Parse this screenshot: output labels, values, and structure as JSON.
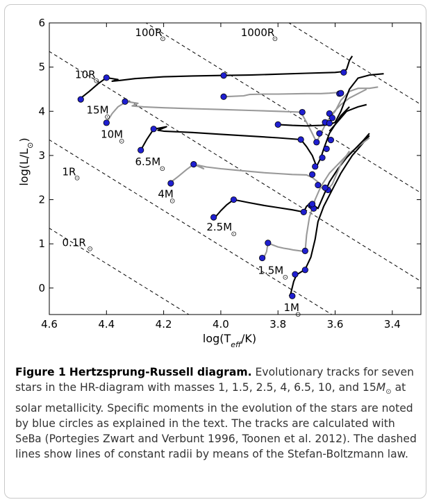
{
  "chart_data": {
    "type": "line",
    "xlabel": "log(T_eff/K)",
    "ylabel": "log(L/L_⊙)",
    "xlim": [
      4.6,
      3.3
    ],
    "ylim": [
      -0.6,
      6.0
    ],
    "x_inverted": true,
    "xticks": [
      "4.6",
      "4.4",
      "4.2",
      "4.0",
      "3.8",
      "3.6",
      "3.4"
    ],
    "yticks": [
      "0",
      "1",
      "2",
      "3",
      "4",
      "5",
      "6"
    ],
    "grid": false,
    "colors": {
      "black_track": "#000000",
      "gray_track": "#999999",
      "marker": "#1f1fd0",
      "radius_line": "#000000"
    },
    "radius_lines": [
      {
        "label": "0.1R",
        "log_r": -1
      },
      {
        "label": "1R",
        "log_r": 0
      },
      {
        "label": "10R",
        "log_r": 1
      },
      {
        "label": "100R",
        "log_r": 2
      },
      {
        "label": "1000R",
        "log_r": 3
      }
    ],
    "series": [
      {
        "name": "1M",
        "color": "black",
        "label_x": 3.78,
        "label_y": -0.52,
        "x": [
          3.76,
          3.755,
          3.745,
          3.735,
          3.72,
          3.705,
          3.685,
          3.67,
          3.66,
          3.64,
          3.62,
          3.6,
          3.58,
          3.56,
          3.54,
          3.52,
          3.5,
          3.49,
          3.48
        ],
        "y": [
          -0.18,
          -0.12,
          0.15,
          0.3,
          0.36,
          0.42,
          0.7,
          1.1,
          1.5,
          1.85,
          2.1,
          2.35,
          2.6,
          2.8,
          3.0,
          3.15,
          3.3,
          3.38,
          3.45
        ],
        "marker_x": [
          3.75,
          3.74,
          3.705
        ],
        "marker_y": [
          -0.18,
          0.31,
          0.41
        ]
      },
      {
        "name": "1.5M",
        "color": "gray",
        "label_x": 3.87,
        "label_y": 0.32,
        "x": [
          3.85,
          3.84,
          3.835,
          3.82,
          3.8,
          3.78,
          3.76,
          3.745,
          3.72,
          3.705,
          3.7,
          3.69,
          3.68,
          3.67,
          3.65,
          3.62,
          3.59,
          3.56,
          3.53,
          3.5,
          3.48
        ],
        "y": [
          0.68,
          0.82,
          1.02,
          0.98,
          0.93,
          0.9,
          0.88,
          0.86,
          0.84,
          0.82,
          1.2,
          1.6,
          1.8,
          2.0,
          2.3,
          2.6,
          2.8,
          3.0,
          3.15,
          3.3,
          3.4
        ],
        "marker_x": [
          3.855,
          3.835,
          3.705
        ],
        "marker_y": [
          0.68,
          1.02,
          0.84
        ]
      },
      {
        "name": "2.5M",
        "color": "black",
        "label_x": 4.05,
        "label_y": 1.3,
        "x": [
          4.02,
          4.0,
          3.98,
          3.955,
          3.9,
          3.85,
          3.8,
          3.75,
          3.71,
          3.7,
          3.69,
          3.68,
          3.67,
          3.66,
          3.64,
          3.62,
          3.59,
          3.56,
          3.53,
          3.5,
          3.48
        ],
        "y": [
          1.6,
          1.75,
          1.88,
          2.0,
          1.93,
          1.87,
          1.82,
          1.77,
          1.72,
          1.85,
          1.9,
          1.88,
          1.85,
          1.8,
          2.1,
          2.4,
          2.7,
          2.95,
          3.15,
          3.35,
          3.5
        ],
        "marker_x": [
          4.025,
          3.955,
          3.71,
          3.685,
          3.68,
          3.675,
          3.68
        ],
        "marker_y": [
          1.6,
          2.0,
          1.72,
          1.87,
          1.85,
          1.8,
          1.9
        ]
      },
      {
        "name": "4M",
        "color": "gray",
        "label_x": 4.22,
        "label_y": 2.05,
        "x": [
          4.18,
          4.15,
          4.12,
          4.095,
          4.06,
          4.08,
          4.05,
          4.0,
          3.95,
          3.9,
          3.85,
          3.8,
          3.75,
          3.7,
          3.68,
          3.66,
          3.65,
          3.63,
          3.61,
          3.58,
          3.55
        ],
        "y": [
          2.37,
          2.52,
          2.68,
          2.8,
          2.7,
          2.78,
          2.74,
          2.7,
          2.67,
          2.64,
          2.61,
          2.59,
          2.57,
          2.56,
          2.5,
          2.4,
          2.28,
          2.2,
          2.35,
          2.8,
          3.1
        ],
        "marker_x": [
          4.175,
          4.095,
          3.68,
          3.66,
          3.625,
          3.635
        ],
        "marker_y": [
          2.37,
          2.8,
          2.57,
          2.33,
          2.22,
          2.27
        ]
      },
      {
        "name": "6.5M",
        "color": "black",
        "label_x": 4.3,
        "label_y": 2.78,
        "x": [
          4.28,
          4.26,
          4.24,
          4.23,
          4.19,
          4.22,
          4.2,
          4.1,
          4.0,
          3.9,
          3.8,
          3.72,
          3.7,
          3.68,
          3.665,
          3.65,
          3.64,
          3.62,
          3.6,
          3.58,
          3.55
        ],
        "y": [
          3.12,
          3.35,
          3.55,
          3.6,
          3.65,
          3.57,
          3.55,
          3.52,
          3.48,
          3.44,
          3.4,
          3.36,
          3.2,
          3.0,
          2.75,
          2.95,
          3.15,
          3.5,
          3.7,
          3.9,
          4.1
        ],
        "marker_x": [
          4.28,
          4.235,
          3.72,
          3.67,
          3.645,
          3.63,
          3.615
        ],
        "marker_y": [
          3.12,
          3.6,
          3.36,
          2.75,
          2.95,
          3.15,
          3.35
        ]
      },
      {
        "name": "10M",
        "color": "gray",
        "label_x": 4.42,
        "label_y": 3.4,
        "x": [
          4.4,
          4.38,
          4.36,
          4.33,
          4.29,
          4.31,
          4.27,
          4.2,
          4.1,
          4.0,
          3.9,
          3.8,
          3.72,
          3.7,
          3.68,
          3.665,
          3.65,
          3.63,
          3.61,
          3.58,
          3.55,
          3.52,
          3.49
        ],
        "y": [
          3.74,
          3.95,
          4.1,
          4.22,
          4.18,
          4.12,
          4.1,
          4.08,
          4.06,
          4.04,
          4.02,
          4.0,
          3.98,
          3.75,
          3.5,
          3.3,
          3.5,
          3.75,
          3.95,
          4.15,
          4.3,
          4.4,
          4.5
        ],
        "marker_x": [
          4.4,
          4.335,
          3.715,
          3.665,
          3.655,
          3.635
        ],
        "marker_y": [
          3.74,
          4.22,
          3.98,
          3.3,
          3.5,
          3.75
        ]
      },
      {
        "name": "15M",
        "color": "black",
        "label_x": 4.47,
        "label_y": 3.95,
        "x": [
          4.495,
          4.46,
          4.43,
          4.4,
          4.36,
          4.38,
          4.35,
          4.3,
          4.2,
          4.1,
          4.0,
          3.9,
          3.8,
          3.7,
          3.6,
          3.57,
          3.56,
          3.555,
          3.55,
          3.54
        ],
        "y": [
          4.27,
          4.45,
          4.62,
          4.76,
          4.72,
          4.68,
          4.7,
          4.74,
          4.78,
          4.8,
          4.81,
          4.82,
          4.84,
          4.86,
          4.88,
          4.9,
          4.95,
          5.05,
          5.15,
          5.25
        ],
        "marker_x": [
          4.49,
          4.4,
          3.99,
          3.57
        ],
        "marker_y": [
          4.27,
          4.76,
          4.81,
          4.88
        ]
      },
      {
        "name": "",
        "color": "gray",
        "label_x": null,
        "label_y": null,
        "x": [
          3.99,
          3.92,
          3.9,
          3.85,
          3.8,
          3.7,
          3.65,
          3.62,
          3.6,
          3.58,
          3.57
        ],
        "y": [
          4.33,
          4.35,
          4.38,
          4.39,
          4.39,
          4.4,
          4.4,
          4.41,
          4.42,
          4.42,
          4.43
        ],
        "marker_x": [
          3.99,
          3.585,
          3.58
        ],
        "marker_y": [
          4.33,
          4.4,
          4.41
        ]
      },
      {
        "name": "",
        "color": "gray",
        "label_x": null,
        "label_y": null,
        "x": [
          3.62,
          3.6,
          3.58,
          3.55,
          3.52,
          3.48,
          3.45
        ],
        "y": [
          3.85,
          4.0,
          4.25,
          4.45,
          4.52,
          4.52,
          4.55
        ],
        "marker_x": [
          3.62,
          3.61
        ],
        "marker_y": [
          3.95,
          3.85
        ]
      },
      {
        "name": "",
        "color": "black",
        "label_x": null,
        "label_y": null,
        "x": [
          3.8,
          3.75,
          3.7,
          3.65,
          3.62,
          3.6,
          3.58,
          3.55,
          3.52,
          3.48,
          3.43
        ],
        "y": [
          3.7,
          3.68,
          3.67,
          3.68,
          3.7,
          3.75,
          4.0,
          4.5,
          4.75,
          4.82,
          4.85
        ],
        "marker_x": [
          3.8,
          3.62
        ],
        "marker_y": [
          3.7,
          3.73
        ]
      },
      {
        "name": "",
        "color": "black",
        "label_x": null,
        "label_y": null,
        "x": [
          3.62,
          3.6,
          3.58,
          3.56,
          3.52,
          3.49
        ],
        "y": [
          3.55,
          3.7,
          3.85,
          4.0,
          4.1,
          4.15
        ],
        "marker_x": [],
        "marker_y": []
      }
    ]
  },
  "caption": {
    "figure_label": "Figure 1",
    "title": "Hertzsprung-Russell diagram.",
    "text_part1": " Evolutionary tracks for seven stars in the HR-diagram with masses 1, 1.5, 2.5, 4, 6.5, 10, and 15",
    "msun_m": "M",
    "msun_sub": "⊙",
    "text_part2": " at solar metallicity. Specific moments in the evolution of the stars are noted by blue circles as explained in the text. The tracks are calculated with ",
    "code": "SeBa",
    "text_part3": " (Portegies Zwart and Verbunt 1996, Toonen et al. 2012). The dashed lines show lines of constant radii by means of the Stefan-Boltzmann law."
  }
}
